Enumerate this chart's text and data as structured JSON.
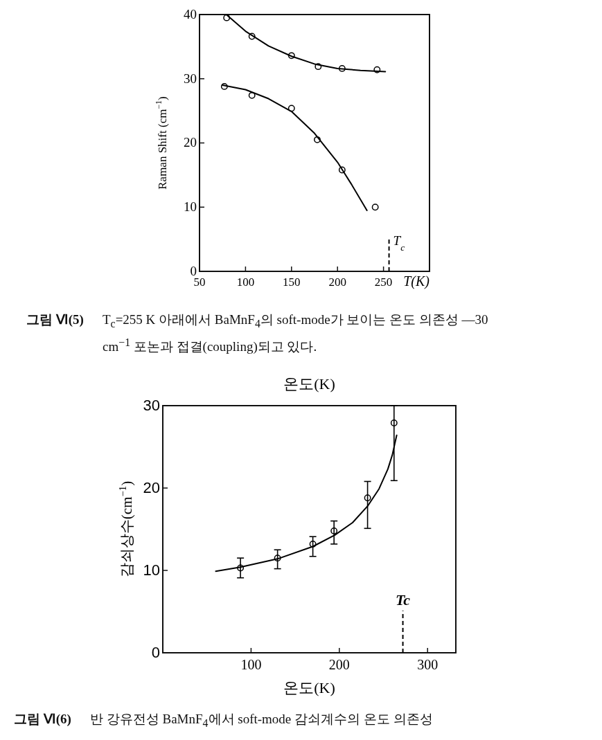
{
  "chart_data": [
    {
      "type": "scatter",
      "xlabel": "T(K)",
      "ylabel": "Raman Shift (cm$^{−1}$)",
      "xlim": [
        50,
        300
      ],
      "ylim": [
        0,
        40
      ],
      "xticks": [
        50,
        100,
        150,
        200,
        250
      ],
      "yticks": [
        0,
        10,
        20,
        30,
        40
      ],
      "series": [
        {
          "type": "scatter",
          "color": "#000000",
          "marker": "circle",
          "x": [
            79.5,
            107,
            150,
            179,
            205,
            243
          ],
          "values": [
            39.5,
            36.6,
            33.6,
            31.9,
            31.6,
            31.4
          ]
        },
        {
          "type": "line",
          "color": "#000000",
          "marker": "none",
          "line_style": "solid",
          "x": [
            80,
            100,
            125,
            150,
            175,
            200,
            225,
            252
          ],
          "values": [
            39.9,
            37.4,
            35.1,
            33.5,
            32.3,
            31.6,
            31.3,
            31.1
          ]
        },
        {
          "type": "scatter",
          "color": "#000000",
          "marker": "circle",
          "x": [
            77,
            107,
            150,
            178,
            205,
            241
          ],
          "values": [
            28.8,
            27.4,
            25.4,
            20.5,
            15.8,
            10.0
          ]
        },
        {
          "type": "line",
          "color": "#000000",
          "marker": "none",
          "line_style": "solid",
          "x": [
            75,
            100,
            125,
            150,
            175,
            200,
            215,
            232
          ],
          "values": [
            29.0,
            28.3,
            26.9,
            24.9,
            21.5,
            17.0,
            13.6,
            9.5
          ]
        }
      ],
      "ref_lines": [
        {
          "axis": "x",
          "value": 256,
          "label": "T$_{c}$",
          "line_style": "dashed",
          "color": "#000000"
        }
      ],
      "annotations": [
        "그림 Ⅵ(5)",
        "T$_{c}$=255 K 아래에서 BaMnF$_{4}$의 soft-mode가 보이는 온도 의존성 —30 cm$^{−1}$ 포논과 접결(coupling)되고 있다."
      ]
    },
    {
      "type": "scatter",
      "title": "온도(K)",
      "xlabel": "온도(K)",
      "ylabel": "감쇠상수(cm$^{−1}$)",
      "xlim": [
        0,
        332
      ],
      "ylim": [
        0,
        30
      ],
      "xticks": [
        100,
        200,
        300
      ],
      "yticks": [
        0,
        10,
        20,
        30
      ],
      "series": [
        {
          "type": "scatter",
          "color": "#000000",
          "marker": "circle",
          "x": [
            88,
            130,
            170,
            194,
            232,
            262
          ],
          "values": [
            10.3,
            11.5,
            13.2,
            14.8,
            18.8,
            27.9
          ],
          "errors": [
            [
              9.1,
              11.5
            ],
            [
              10.2,
              12.5
            ],
            [
              11.7,
              14.1
            ],
            [
              13.2,
              16.0
            ],
            [
              15.1,
              20.8
            ],
            [
              20.9,
              30
            ]
          ]
        },
        {
          "type": "line",
          "color": "#000000",
          "marker": "none",
          "line_style": "solid",
          "x": [
            60,
            88,
            130,
            170,
            195,
            215,
            232,
            245,
            255,
            260,
            265
          ],
          "values": [
            9.9,
            10.4,
            11.4,
            12.9,
            14.3,
            15.8,
            17.8,
            19.9,
            22.3,
            24.0,
            26.4
          ]
        }
      ],
      "ref_lines": [
        {
          "axis": "x",
          "value": 272,
          "label": "Tc",
          "line_style": "dashed",
          "color": "#000000"
        }
      ],
      "annotations": [
        "그림 Ⅵ(6)",
        "반 강유전성 BaMnF$_{4}$에서 soft-mode 감쇠계수의 온도 의존성"
      ]
    }
  ]
}
